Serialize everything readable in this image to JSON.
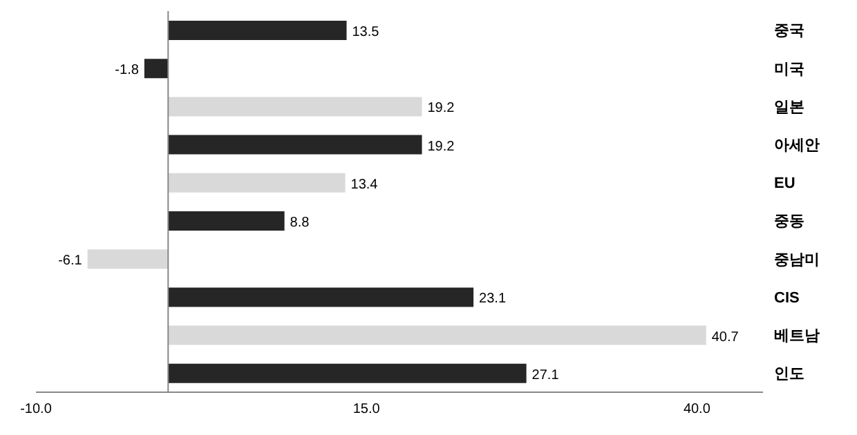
{
  "chart_data": {
    "type": "bar",
    "orientation": "horizontal",
    "categories": [
      "중국",
      "미국",
      "일본",
      "아세안",
      "EU",
      "중동",
      "중남미",
      "CIS",
      "베트남",
      "인도"
    ],
    "values": [
      13.5,
      -1.8,
      19.2,
      19.2,
      13.4,
      8.8,
      -6.1,
      23.1,
      40.7,
      27.1
    ],
    "colors": [
      "#262626",
      "#262626",
      "#d9d9d9",
      "#262626",
      "#d9d9d9",
      "#262626",
      "#d9d9d9",
      "#262626",
      "#d9d9d9",
      "#262626"
    ],
    "xlim": [
      -10,
      45
    ],
    "xticks": [
      {
        "value": -10,
        "label": "-10.0"
      },
      {
        "value": 15,
        "label": "15.0"
      },
      {
        "value": 40,
        "label": "40.0"
      }
    ],
    "data_labels": true,
    "grid": false,
    "legend": false
  }
}
